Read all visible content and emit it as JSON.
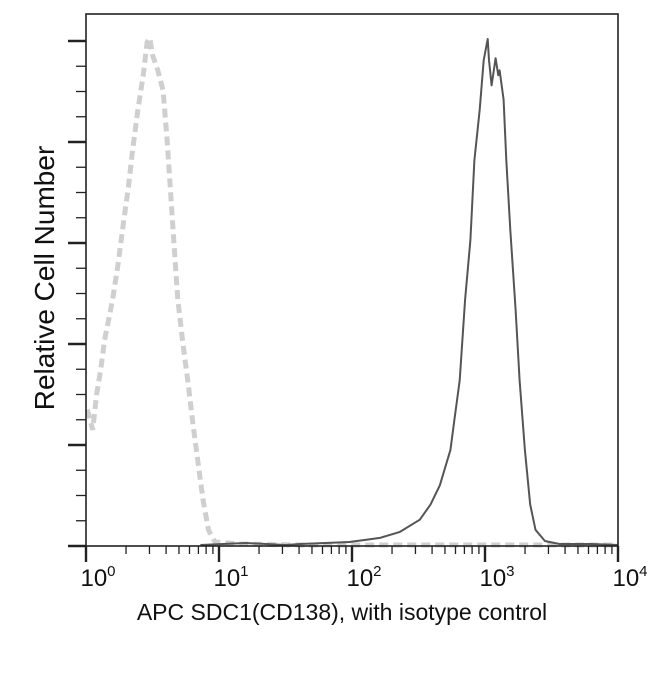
{
  "chart_data": {
    "type": "line",
    "title": "",
    "xlabel": "APC SDC1(CD138), with isotype control",
    "ylabel": "Relative Cell Number",
    "x_scale": "log10",
    "xlim_log10": [
      0,
      4
    ],
    "ylim": [
      0,
      5.25
    ],
    "x_ticks": [
      {
        "base": "10",
        "exp": "0"
      },
      {
        "base": "10",
        "exp": "1"
      },
      {
        "base": "10",
        "exp": "2"
      },
      {
        "base": "10",
        "exp": "3"
      },
      {
        "base": "10",
        "exp": "4"
      }
    ],
    "y_major_ticks": [
      0,
      1,
      2,
      3,
      4,
      5
    ],
    "grid": false,
    "legend": "none",
    "series": [
      {
        "name": "isotype control",
        "style": "dashed",
        "color": "#cfcfcf",
        "x_log10": [
          0.01,
          0.05,
          0.08,
          0.11,
          0.14,
          0.2,
          0.24,
          0.28,
          0.32,
          0.35,
          0.39,
          0.43,
          0.46,
          0.48,
          0.5,
          0.54,
          0.58,
          0.61,
          0.63,
          0.65,
          0.67,
          0.69,
          0.73,
          0.77,
          0.8,
          0.84,
          0.88,
          0.92,
          0.97,
          1.16,
          1.61,
          4.0
        ],
        "y": [
          1.35,
          1.15,
          1.5,
          1.74,
          2.04,
          2.44,
          2.78,
          3.18,
          3.57,
          3.92,
          4.32,
          4.66,
          4.99,
          5.03,
          4.86,
          4.71,
          4.51,
          4.02,
          3.62,
          3.23,
          2.83,
          2.44,
          1.99,
          1.59,
          1.25,
          0.85,
          0.46,
          0.16,
          0.04,
          0.02,
          0.01,
          0.01
        ]
      },
      {
        "name": "APC SDC1(CD138)",
        "style": "solid",
        "color": "#555555",
        "x_log10": [
          0.86,
          1.2,
          1.5,
          1.61,
          1.8,
          1.98,
          2.1,
          2.21,
          2.36,
          2.51,
          2.59,
          2.66,
          2.74,
          2.77,
          2.81,
          2.85,
          2.89,
          2.92,
          2.96,
          2.99,
          3.02,
          3.03,
          3.05,
          3.08,
          3.1,
          3.11,
          3.14,
          3.16,
          3.19,
          3.23,
          3.26,
          3.3,
          3.34,
          3.38,
          3.45,
          3.56,
          3.8,
          4.0
        ],
        "y": [
          0.01,
          0.03,
          0.01,
          0.02,
          0.03,
          0.04,
          0.06,
          0.08,
          0.14,
          0.26,
          0.41,
          0.6,
          0.95,
          1.25,
          1.64,
          2.44,
          3.03,
          3.82,
          4.32,
          4.81,
          5.02,
          4.81,
          4.56,
          4.83,
          4.66,
          4.71,
          4.42,
          3.82,
          3.13,
          2.34,
          1.64,
          0.95,
          0.41,
          0.16,
          0.05,
          0.02,
          0.02,
          0.01
        ]
      }
    ]
  }
}
